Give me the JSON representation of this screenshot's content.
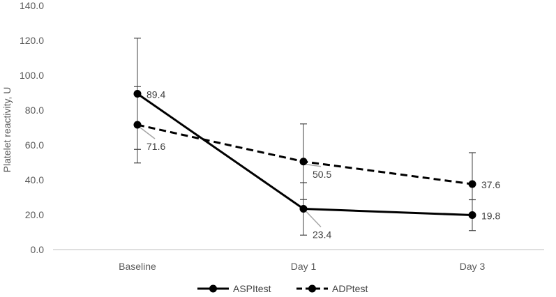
{
  "chart_data": {
    "type": "line",
    "categories": [
      "Baseline",
      "Day 1",
      "Day 3"
    ],
    "ylabel": "Platelet reactivity, U",
    "xlabel": "",
    "ylim": [
      0,
      140
    ],
    "ytick_step": 20,
    "ytick_labels": [
      "0.0",
      "20.0",
      "40.0",
      "60.0",
      "80.0",
      "100.0",
      "120.0",
      "140.0"
    ],
    "grid": false,
    "legend_position": "bottom",
    "series": [
      {
        "name": "ASPItest",
        "line_style": "solid",
        "color": "#000000",
        "values": [
          89.4,
          23.4,
          19.8
        ],
        "labels": [
          "89.4",
          "23.4",
          "19.8"
        ],
        "error_low": [
          49.7,
          8.3,
          10.9
        ],
        "error_high": [
          121.3,
          38.4,
          28.6
        ]
      },
      {
        "name": "ADPtest",
        "line_style": "dashed",
        "color": "#000000",
        "values": [
          71.6,
          50.5,
          37.6
        ],
        "labels": [
          "71.6",
          "50.5",
          "37.6"
        ],
        "error_low": [
          57.5,
          28.7,
          19.8
        ],
        "error_high": [
          93.5,
          72.1,
          55.6
        ]
      }
    ]
  },
  "colors": {
    "axis": "#bfbfbf",
    "leader": "#a6a6a6",
    "error_bar": "#404040"
  }
}
